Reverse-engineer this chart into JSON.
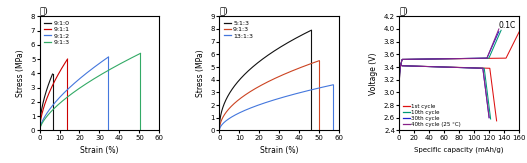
{
  "panel_a": {
    "title": "가)",
    "xlabel": "Strain (%)",
    "ylabel": "Stress (MPa)",
    "xlim": [
      0,
      60
    ],
    "ylim": [
      0,
      8
    ],
    "yticks": [
      0,
      1,
      2,
      3,
      4,
      5,
      6,
      7,
      8
    ],
    "xticks": [
      0,
      10,
      20,
      30,
      40,
      50,
      60
    ],
    "curves": [
      {
        "label": "9:1:0",
        "color": "#111111",
        "strain_peak": 6.5,
        "stress_peak": 3.95,
        "exponent": 0.55
      },
      {
        "label": "9:1:1",
        "color": "#cc0000",
        "strain_peak": 14.0,
        "stress_peak": 5.0,
        "exponent": 0.6
      },
      {
        "label": "9:1:2",
        "color": "#4477dd",
        "strain_peak": 34.5,
        "stress_peak": 5.15,
        "exponent": 0.65
      },
      {
        "label": "9:1:3",
        "color": "#33aa66",
        "strain_peak": 50.5,
        "stress_peak": 5.4,
        "exponent": 0.65
      }
    ]
  },
  "panel_b": {
    "title": "나)",
    "xlabel": "Strain (%)",
    "ylabel": "Stress (MPa)",
    "xlim": [
      0,
      60
    ],
    "ylim": [
      0,
      9
    ],
    "yticks": [
      0,
      1,
      2,
      3,
      4,
      5,
      6,
      7,
      8,
      9
    ],
    "xticks": [
      0,
      10,
      20,
      30,
      40,
      50,
      60
    ],
    "curves": [
      {
        "label": "5:1:3",
        "color": "#111111",
        "strain_peak": 46.0,
        "stress_peak": 7.9,
        "exponent": 0.45
      },
      {
        "label": "9:1:3",
        "color": "#cc4422",
        "strain_peak": 50.0,
        "stress_peak": 5.5,
        "exponent": 0.5
      },
      {
        "label": "13:1:3",
        "color": "#4477dd",
        "strain_peak": 57.0,
        "stress_peak": 3.6,
        "exponent": 0.55
      }
    ]
  },
  "panel_c": {
    "title": "다)",
    "xlabel": "Specific capacity (mAh/g)",
    "ylabel": "Voltage (V)",
    "xlim": [
      0,
      160
    ],
    "ylim": [
      2.4,
      4.2
    ],
    "yticks": [
      2.4,
      2.6,
      2.8,
      3.0,
      3.2,
      3.4,
      3.6,
      3.8,
      4.0,
      4.2
    ],
    "xticks": [
      0,
      20,
      40,
      60,
      80,
      100,
      120,
      140,
      160
    ],
    "annotation": "0.1C",
    "cycles": [
      {
        "label": "1st cycle",
        "color": "#dd1111",
        "cap_d": 130,
        "cap_c": 162,
        "v_max": 4.0,
        "v_min": 2.55
      },
      {
        "label": "10th cycle",
        "color": "#009977",
        "cap_d": 122,
        "cap_c": 136,
        "v_max": 3.98,
        "v_min": 2.58
      },
      {
        "label": "30th cycle",
        "color": "#2222cc",
        "cap_d": 120,
        "cap_c": 133,
        "v_max": 3.96,
        "v_min": 2.6
      },
      {
        "label": "40th cycle (25 °C)",
        "color": "#882288",
        "cap_d": 120,
        "cap_c": 133,
        "v_max": 4.0,
        "v_min": 2.6
      }
    ]
  }
}
